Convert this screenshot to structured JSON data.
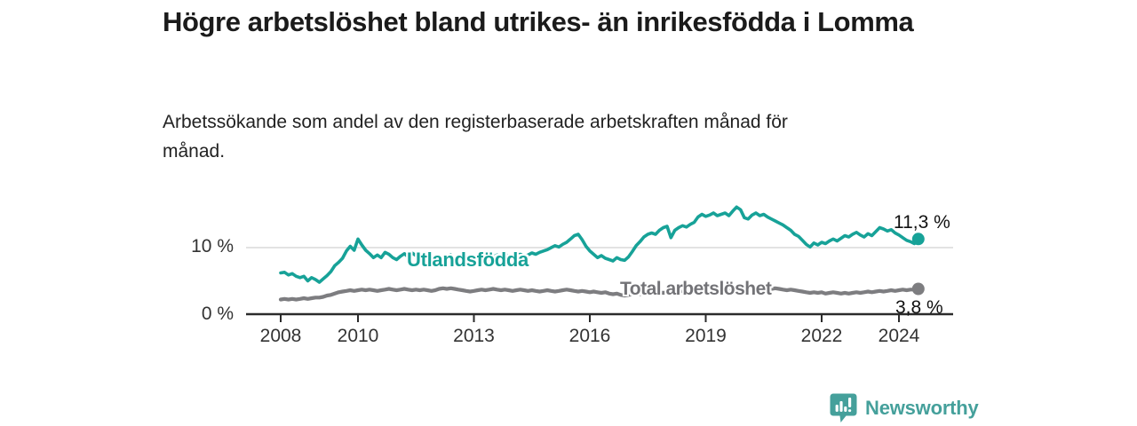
{
  "chart_data": {
    "type": "line",
    "title": "Högre arbetslöshet bland utrikes- än inrikesfödda i Lomma",
    "subtitle": "Arbetssökande som andel av den registerbaserade arbetskraften månad för månad.",
    "unit": "%",
    "legend": "inline-labels-on-lines",
    "grid": "single horizontal gridline at 10 %",
    "x_axis": {
      "tick_labels": [
        "2008",
        "2010",
        "2013",
        "2016",
        "2019",
        "2022",
        "2024"
      ],
      "tick_years": [
        2008,
        2010,
        2013,
        2016,
        2019,
        2022,
        2024
      ],
      "range_years": [
        2007.1,
        2025.4
      ]
    },
    "y_axis": {
      "tick_labels": [
        "0 %",
        "10 %"
      ],
      "tick_values": [
        0,
        10
      ],
      "range": [
        0,
        17
      ],
      "gridline_at": 10
    },
    "series": [
      {
        "name": "Utlandsfödda",
        "color": "#17a298",
        "start_year": 2008.0,
        "step_years": 0.1,
        "end_value": 11.3,
        "end_label": "11,3 %",
        "values": [
          6.2,
          6.3,
          5.9,
          6.1,
          5.7,
          5.5,
          5.7,
          5.0,
          5.5,
          5.2,
          4.8,
          5.3,
          5.8,
          6.4,
          7.3,
          7.8,
          8.4,
          9.5,
          10.2,
          9.6,
          11.3,
          10.4,
          9.6,
          9.1,
          8.5,
          8.9,
          8.5,
          9.3,
          9.0,
          8.5,
          8.2,
          8.7,
          9.1,
          8.6,
          9.2,
          8.8,
          8.5,
          9.1,
          8.6,
          8.1,
          7.8,
          7.2,
          7.6,
          8.1,
          8.9,
          8.4,
          8.1,
          7.7,
          8.3,
          7.9,
          7.4,
          7.9,
          8.4,
          8.7,
          8.3,
          8.6,
          8.9,
          8.6,
          9.0,
          8.7,
          8.5,
          8.8,
          9.0,
          8.7,
          8.9,
          9.2,
          9.0,
          9.3,
          9.5,
          9.7,
          10.0,
          10.3,
          10.1,
          10.5,
          10.8,
          11.3,
          11.8,
          12.0,
          11.2,
          10.2,
          9.5,
          9.0,
          8.5,
          8.8,
          8.4,
          8.2,
          8.0,
          8.5,
          8.2,
          8.1,
          8.6,
          9.4,
          10.3,
          10.9,
          11.6,
          12.0,
          12.2,
          12.0,
          12.6,
          13.0,
          13.2,
          11.5,
          12.6,
          13.0,
          13.3,
          13.1,
          13.5,
          13.8,
          14.6,
          15.0,
          14.7,
          14.9,
          15.2,
          14.8,
          15.0,
          15.2,
          14.8,
          15.5,
          16.1,
          15.7,
          14.5,
          14.3,
          14.9,
          15.2,
          14.8,
          15.0,
          14.6,
          14.3,
          14.0,
          13.7,
          13.4,
          13.0,
          12.6,
          12.0,
          11.7,
          11.1,
          10.5,
          10.1,
          10.7,
          10.4,
          10.8,
          10.6,
          11.0,
          11.3,
          11.0,
          11.4,
          11.8,
          11.6,
          12.0,
          12.3,
          11.9,
          11.6,
          12.1,
          11.8,
          12.4,
          13.0,
          12.8,
          12.5,
          12.7,
          12.2,
          11.9,
          11.5,
          11.1,
          10.9,
          10.6,
          11.3
        ]
      },
      {
        "name": "Total arbetslöshet",
        "color": "#7d7d80",
        "start_year": 2008.0,
        "step_years": 0.1,
        "end_value": 3.8,
        "end_label": "3,8 %",
        "values": [
          2.2,
          2.3,
          2.2,
          2.3,
          2.2,
          2.3,
          2.4,
          2.3,
          2.4,
          2.5,
          2.5,
          2.6,
          2.8,
          2.9,
          3.1,
          3.3,
          3.4,
          3.5,
          3.6,
          3.5,
          3.6,
          3.7,
          3.6,
          3.7,
          3.6,
          3.5,
          3.6,
          3.7,
          3.8,
          3.7,
          3.6,
          3.7,
          3.8,
          3.7,
          3.6,
          3.7,
          3.6,
          3.7,
          3.6,
          3.5,
          3.6,
          3.8,
          3.9,
          3.8,
          3.9,
          3.8,
          3.7,
          3.6,
          3.5,
          3.4,
          3.5,
          3.6,
          3.7,
          3.6,
          3.7,
          3.8,
          3.7,
          3.6,
          3.7,
          3.6,
          3.5,
          3.6,
          3.7,
          3.6,
          3.5,
          3.6,
          3.5,
          3.4,
          3.5,
          3.6,
          3.5,
          3.4,
          3.5,
          3.6,
          3.7,
          3.6,
          3.5,
          3.4,
          3.5,
          3.4,
          3.3,
          3.4,
          3.3,
          3.2,
          3.3,
          3.1,
          3.0,
          3.1,
          2.9,
          2.8,
          2.9,
          3.0,
          3.1,
          3.0,
          3.1,
          3.2,
          3.1,
          3.2,
          3.3,
          3.2,
          3.3,
          3.4,
          3.3,
          3.4,
          3.5,
          3.4,
          3.5,
          3.4,
          3.5,
          3.6,
          3.5,
          3.4,
          3.5,
          3.6,
          3.5,
          3.6,
          3.7,
          3.6,
          3.7,
          3.8,
          3.7,
          3.8,
          3.9,
          4.0,
          3.9,
          4.0,
          3.9,
          3.8,
          3.9,
          3.8,
          3.7,
          3.6,
          3.7,
          3.6,
          3.5,
          3.4,
          3.3,
          3.2,
          3.3,
          3.2,
          3.3,
          3.1,
          3.2,
          3.3,
          3.2,
          3.1,
          3.2,
          3.1,
          3.2,
          3.3,
          3.2,
          3.3,
          3.4,
          3.3,
          3.4,
          3.5,
          3.4,
          3.5,
          3.6,
          3.5,
          3.6,
          3.7,
          3.6,
          3.7,
          3.7,
          3.8
        ]
      }
    ],
    "colors": {
      "axis": "#2b2b2b",
      "gridline": "#d8d8d8",
      "tick_text": "#333333",
      "end_label_text": "#111111"
    }
  },
  "footer": {
    "brand": "Newsworthy",
    "brand_color": "#45a09b",
    "logo_icon": "bar-chart-speech-bubble"
  }
}
